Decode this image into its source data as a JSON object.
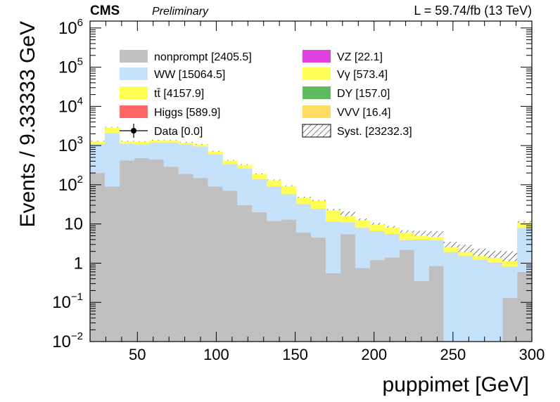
{
  "header": {
    "experiment": "CMS",
    "status": "Preliminary",
    "lumi": "L = 59.74/fb (13 TeV)"
  },
  "chart_data": {
    "type": "bar",
    "subtype": "stacked-histogram",
    "xlabel": "puppimet [GeV]",
    "ylabel": "Events / 9.33333 GeV",
    "xlim": [
      20,
      300
    ],
    "ylim": [
      0.01,
      1500000
    ],
    "yscale": "log",
    "grid": false,
    "legend_position": "top",
    "x_ticks": [
      50,
      100,
      150,
      200,
      250,
      300
    ],
    "y_ticks": [
      {
        "value": 1000000,
        "base": "10",
        "exp": "6"
      },
      {
        "value": 100000,
        "base": "10",
        "exp": "5"
      },
      {
        "value": 10000,
        "base": "10",
        "exp": "4"
      },
      {
        "value": 1000,
        "base": "10",
        "exp": "3"
      },
      {
        "value": 100,
        "base": "10",
        "exp": "2"
      },
      {
        "value": 10,
        "base": "10",
        "exp": ""
      },
      {
        "value": 1,
        "base": "1",
        "exp": ""
      },
      {
        "value": 0.1,
        "base": "10",
        "exp": "−1"
      },
      {
        "value": 0.01,
        "base": "10",
        "exp": "−2"
      }
    ],
    "bin_edges": [
      20,
      29.33,
      38.67,
      48,
      57.33,
      66.67,
      76,
      85.33,
      94.67,
      104,
      113.33,
      122.67,
      132,
      141.33,
      150.67,
      160,
      169.33,
      178.67,
      188,
      197.33,
      206.67,
      216,
      225.33,
      234.67,
      244,
      253.33,
      262.67,
      272,
      281.33,
      290.67,
      300
    ],
    "series": [
      {
        "name": "nonprompt",
        "color": "#c0c0c0",
        "legend": "nonprompt [2405.5]",
        "values": [
          200,
          90,
          420,
          480,
          440,
          290,
          190,
          150,
          90,
          70,
          30,
          20,
          12,
          13,
          6,
          4.5,
          0.55,
          5.5,
          0.75,
          1.2,
          1.4,
          2.2,
          0.35,
          0.85,
          0.005,
          0.005,
          0.005,
          0.005,
          0.13,
          0.6
        ]
      },
      {
        "name": "WW",
        "color": "#c6e2fa",
        "legend": "WW [15064.5]",
        "values": [
          900,
          2000,
          700,
          600,
          760,
          910,
          880,
          800,
          510,
          270,
          230,
          120,
          78,
          44,
          26,
          20,
          11,
          5.5,
          7.2,
          5.3,
          4.1,
          1.6,
          3.6,
          3.0,
          1.9,
          1.5,
          1.2,
          1.0,
          0.68,
          7.3
        ]
      },
      {
        "name": "VZ",
        "color": "#e040e0",
        "legend": "VZ [22.1]",
        "values": [
          2,
          5,
          2,
          2,
          2,
          2,
          2,
          1.5,
          0.5,
          0.3,
          0.3,
          0.2,
          0.1,
          0.1,
          0.05,
          0.05,
          0.02,
          0.02,
          0.02,
          0.02,
          0.02,
          0.02,
          0.02,
          0.01,
          0.01,
          0.01,
          0.01,
          0.01,
          0.005,
          0.02
        ]
      },
      {
        "name": "Vγ",
        "color": "#ffff55",
        "legend": "Vγ [573.4]",
        "values": [
          180,
          800,
          160,
          150,
          140,
          130,
          120,
          100,
          100,
          70,
          60,
          45,
          40,
          35,
          15,
          14,
          11,
          5,
          4.5,
          3.0,
          2.5,
          2.2,
          1.0,
          0.8,
          0.6,
          0.4,
          0.3,
          0.35,
          0.3,
          3.0
        ]
      },
      {
        "name": "tt̄",
        "color": "#ffff50",
        "legend": "tt̄ [4157.9]",
        "values": [
          0,
          0,
          0,
          0,
          0,
          0,
          0,
          0,
          0,
          0,
          0,
          0,
          0,
          0,
          0,
          0,
          0,
          0,
          0,
          0,
          0,
          0,
          0,
          0,
          0,
          0,
          0,
          0,
          0,
          0
        ]
      },
      {
        "name": "Higgs",
        "color": "#ff6666",
        "legend": "Higgs [589.9]",
        "values": [
          0,
          0,
          0,
          0,
          0,
          0,
          0,
          0,
          0,
          0,
          0,
          0,
          0,
          0,
          0,
          0,
          0,
          0,
          0,
          0,
          0,
          0,
          0,
          0,
          0,
          0,
          0,
          0,
          0,
          0
        ]
      },
      {
        "name": "DY",
        "color": "#60bb60",
        "legend": "DY [157.0]",
        "values": [
          0,
          0,
          0,
          0,
          0,
          0,
          0,
          0,
          0,
          0,
          0,
          0,
          0,
          0,
          0,
          0,
          0,
          0,
          0,
          0,
          0,
          0,
          0,
          0,
          0,
          0,
          0,
          0,
          0,
          0
        ]
      },
      {
        "name": "VVV",
        "color": "#ffdd60",
        "legend": "VVV [16.4]",
        "values": [
          0,
          0,
          0,
          0,
          0,
          0,
          0,
          0,
          0,
          0,
          0,
          0,
          0,
          0,
          0,
          0,
          0,
          0,
          0,
          0,
          0,
          0,
          0,
          0,
          0,
          0,
          0,
          0,
          0,
          0
        ]
      }
    ],
    "syst_band": {
      "legend": "Syst. [23232.3]",
      "rel_up": [
        0.04,
        0.04,
        0.04,
        0.04,
        0.04,
        0.04,
        0.04,
        0.04,
        0.04,
        0.04,
        0.04,
        0.05,
        0.05,
        0.05,
        0.05,
        0.06,
        0.06,
        0.3,
        0.1,
        0.12,
        0.1,
        0.15,
        0.35,
        0.4,
        0.4,
        0.55,
        0.55,
        0.5,
        0.8,
        0.08
      ]
    },
    "data_legend": "Data [0.0]",
    "legend_order": [
      [
        "nonprompt",
        "VZ"
      ],
      [
        "WW",
        "Vγ"
      ],
      [
        "tt̄",
        "DY"
      ],
      [
        "Higgs",
        "VVV"
      ],
      [
        "data",
        "syst"
      ]
    ]
  }
}
